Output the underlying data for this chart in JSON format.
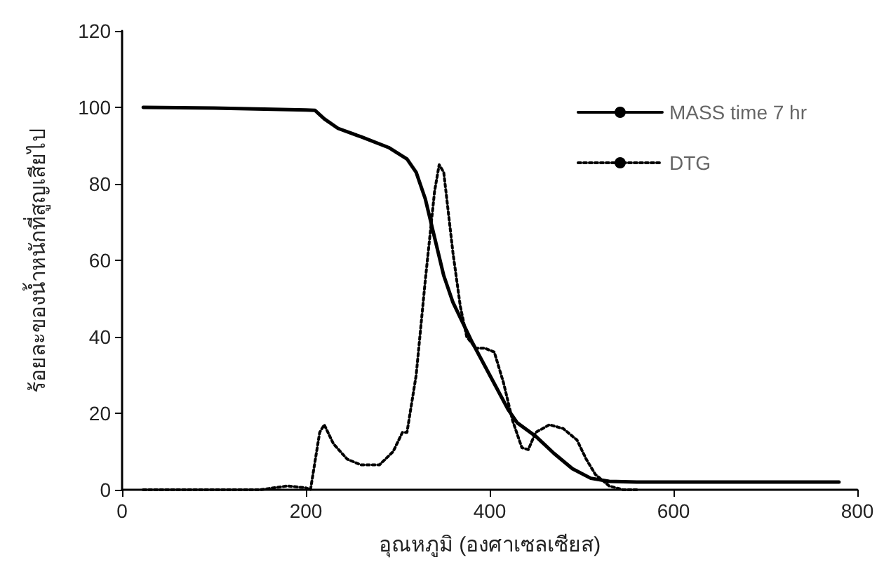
{
  "chart_data": {
    "type": "line",
    "xlabel": "อุณหภูมิ (องศาเซลเซียส)",
    "ylabel": "ร้อยละของน้ำหนักที่สูญเสียไป",
    "xlim": [
      0,
      800
    ],
    "xticks": [
      0,
      200,
      400,
      600,
      800
    ],
    "ylim": [
      0,
      120
    ],
    "yticks": [
      0,
      20,
      40,
      60,
      80,
      100,
      120
    ],
    "grid": false,
    "legend": "top right",
    "marker": "none",
    "series": [
      {
        "name": "MASS time 7 hr",
        "color": "#000000",
        "line_style": "solid",
        "x": [
          23,
          100,
          200,
          210,
          220,
          235,
          260,
          290,
          310,
          320,
          330,
          340,
          350,
          360,
          370,
          380,
          400,
          420,
          430,
          450,
          470,
          490,
          510,
          530,
          560,
          700,
          780
        ],
        "values": [
          100,
          99.8,
          99.3,
          99.2,
          97,
          94.5,
          92.3,
          89.5,
          86.5,
          83,
          76,
          66,
          56,
          49,
          44,
          39,
          30,
          21,
          17.5,
          14,
          9.5,
          5.5,
          3,
          2.2,
          2,
          2,
          2
        ]
      },
      {
        "name": "DTG",
        "color": "#000000",
        "line_style": "dotted",
        "x": [
          23,
          150,
          180,
          200,
          205,
          215,
          220,
          230,
          245,
          260,
          280,
          295,
          305,
          310,
          320,
          330,
          340,
          345,
          350,
          360,
          368,
          375,
          385,
          395,
          405,
          415,
          425,
          435,
          442,
          450,
          465,
          480,
          495,
          505,
          515,
          530,
          545,
          560
        ],
        "values": [
          0,
          0,
          1,
          0.5,
          0,
          15,
          17,
          12,
          8,
          6.5,
          6.5,
          10,
          15,
          15,
          30,
          55,
          78,
          85,
          83,
          62,
          48,
          40,
          37,
          37,
          36,
          28,
          18,
          11,
          10.5,
          15,
          17,
          16,
          13,
          8,
          4,
          1,
          0,
          0
        ]
      }
    ]
  }
}
